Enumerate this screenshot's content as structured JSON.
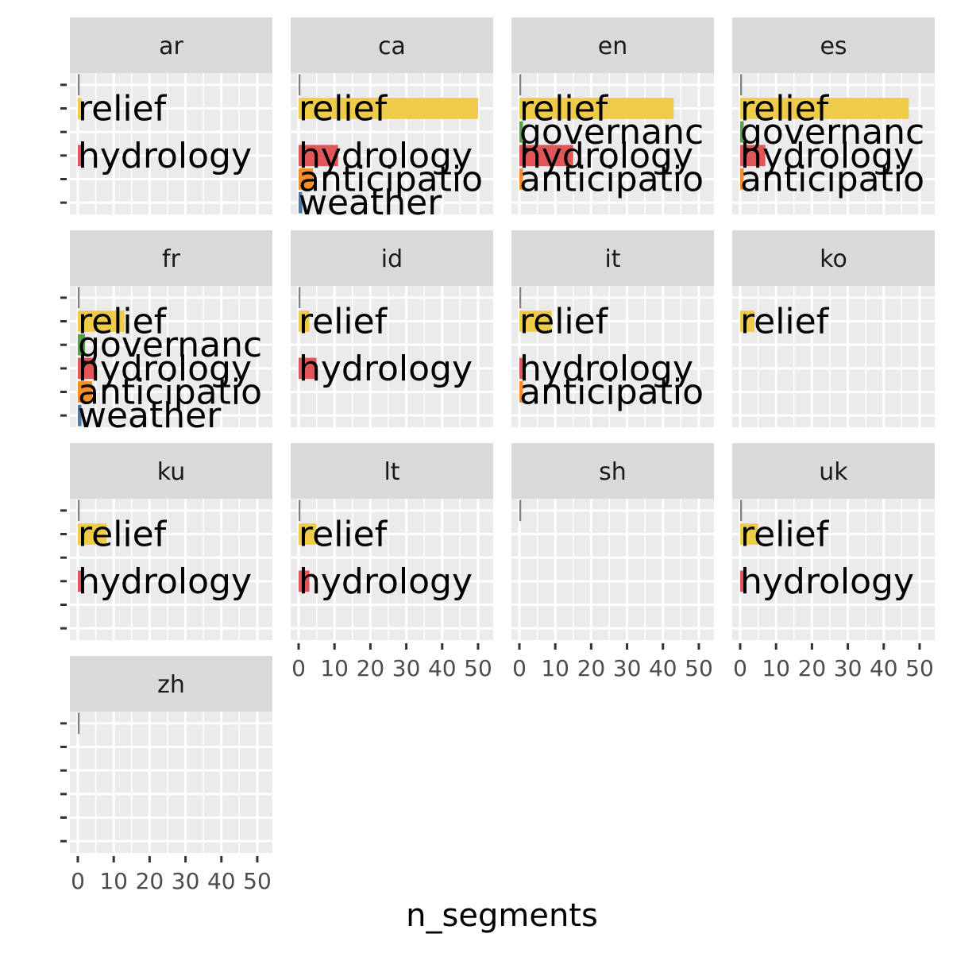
{
  "chart_data": {
    "type": "bar",
    "orientation": "horizontal",
    "facet_by": "language",
    "facet_columns": 4,
    "xlabel": "n_segments",
    "ylabel": "",
    "xlim": [
      0,
      52
    ],
    "x_ticks": [
      0,
      10,
      20,
      30,
      40,
      50
    ],
    "grid": true,
    "legend": "none",
    "category_order": [
      "other",
      "relief",
      "governance",
      "hydrology",
      "anticipation",
      "weather"
    ],
    "category_colors": {
      "other": "#808080",
      "relief": "#EECC4A",
      "governance": "#59A14F",
      "hydrology": "#E15759",
      "anticipation": "#F28E2B",
      "weather": "#4E79A7"
    },
    "category_display": {
      "other": "",
      "relief": "relief",
      "governance": "governanc",
      "hydrology": "hydrology",
      "anticipation": "anticipatio",
      "weather": "weather"
    },
    "facets": [
      {
        "label": "ar",
        "values": {
          "other": 0.5,
          "relief": 1,
          "hydrology": 1
        }
      },
      {
        "label": "ca",
        "values": {
          "other": 0.5,
          "relief": 50,
          "hydrology": 11,
          "anticipation": 4,
          "weather": 1
        }
      },
      {
        "label": "en",
        "values": {
          "other": 0.5,
          "relief": 43,
          "governance": 1,
          "hydrology": 15,
          "anticipation": 1
        }
      },
      {
        "label": "es",
        "values": {
          "other": 0.5,
          "relief": 47,
          "governance": 1,
          "hydrology": 7,
          "anticipation": 1
        }
      },
      {
        "label": "fr",
        "values": {
          "other": 0.5,
          "relief": 13,
          "governance": 2,
          "hydrology": 5,
          "anticipation": 4,
          "weather": 1
        }
      },
      {
        "label": "id",
        "values": {
          "other": 0.5,
          "relief": 3,
          "hydrology": 5
        }
      },
      {
        "label": "it",
        "values": {
          "other": 0.5,
          "relief": 9,
          "hydrology": 1,
          "anticipation": 1
        }
      },
      {
        "label": "ko",
        "values": {
          "relief": 4
        }
      },
      {
        "label": "ku",
        "values": {
          "other": 0.5,
          "relief": 8,
          "hydrology": 1
        }
      },
      {
        "label": "lt",
        "values": {
          "other": 0.5,
          "relief": 5,
          "hydrology": 3
        }
      },
      {
        "label": "sh",
        "values": {
          "other": 0.5
        }
      },
      {
        "label": "uk",
        "values": {
          "other": 0.5,
          "relief": 5,
          "hydrology": 1
        }
      },
      {
        "label": "zh",
        "values": {
          "other": 0.5
        }
      }
    ]
  }
}
